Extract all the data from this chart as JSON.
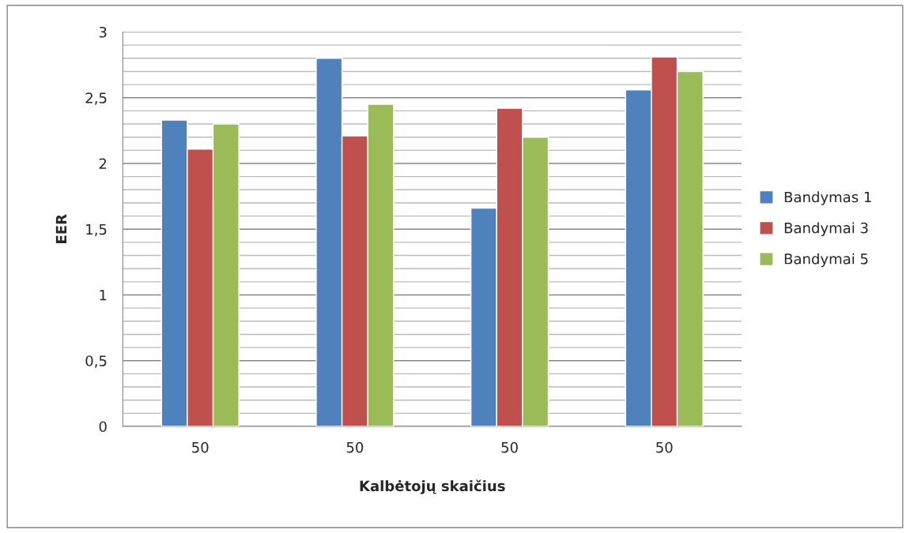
{
  "chart_data": {
    "type": "bar",
    "xlabel": "Kalbėtojų skaičius",
    "ylabel": "EER",
    "categories": [
      "50",
      "50",
      "50",
      "50"
    ],
    "series": [
      {
        "name": "Bandymas 1",
        "color": "#4f81bd",
        "values": [
          2.33,
          2.8,
          1.66,
          2.56
        ]
      },
      {
        "name": "Bandymai 3",
        "color": "#c0504d",
        "values": [
          2.11,
          2.21,
          2.42,
          2.81
        ]
      },
      {
        "name": "Bandymai 5",
        "color": "#9bbb59",
        "values": [
          2.3,
          2.45,
          2.2,
          2.7
        ]
      }
    ],
    "ylim": [
      0,
      3
    ],
    "yticks": [
      0,
      {
        "value": 0.1,
        "label": null
      },
      {
        "value": 0.2,
        "label": null
      },
      {
        "value": 0.3,
        "label": null
      },
      {
        "value": 0.4,
        "label": null
      },
      {
        "value": 0.5,
        "label": "0,5"
      },
      {
        "value": 0.6,
        "label": null
      },
      {
        "value": 0.7,
        "label": null
      },
      {
        "value": 0.8,
        "label": null
      },
      {
        "value": 0.9,
        "label": null
      },
      1,
      {
        "value": 1.1,
        "label": null
      },
      {
        "value": 1.2,
        "label": null
      },
      {
        "value": 1.3,
        "label": null
      },
      {
        "value": 1.4,
        "label": null
      },
      {
        "value": 1.5,
        "label": "1,5"
      },
      {
        "value": 1.6,
        "label": null
      },
      {
        "value": 1.7,
        "label": null
      },
      {
        "value": 1.8,
        "label": null
      },
      {
        "value": 1.9,
        "label": null
      },
      2,
      {
        "value": 2.1,
        "label": null
      },
      {
        "value": 2.2,
        "label": null
      },
      {
        "value": 2.3,
        "label": null
      },
      {
        "value": 2.4,
        "label": null
      },
      {
        "value": 2.5,
        "label": "2,5"
      },
      {
        "value": 2.6,
        "label": null
      },
      {
        "value": 2.7,
        "label": null
      },
      {
        "value": 2.8,
        "label": null
      },
      {
        "value": 2.9,
        "label": null
      },
      3
    ],
    "grid": "y",
    "legend": "right"
  }
}
